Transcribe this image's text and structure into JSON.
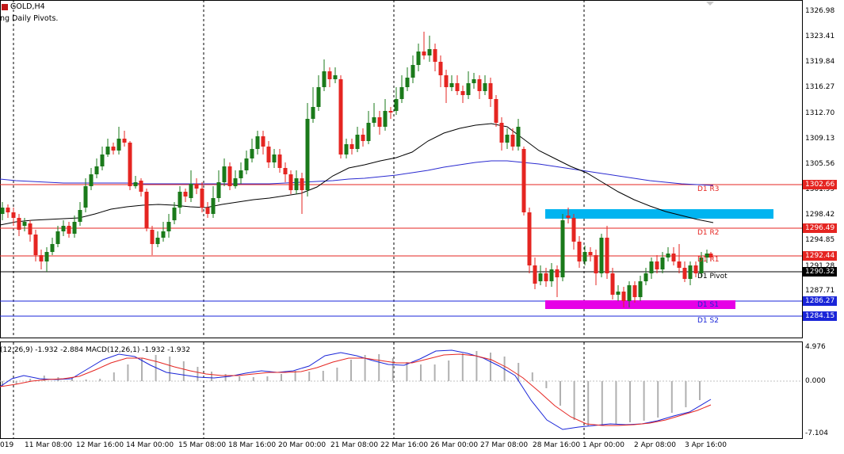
{
  "header": {
    "symbol": "GOLD,H4",
    "indicator_name": "ng Daily Pivots."
  },
  "price_scale": [
    "1326.98",
    "1323.41",
    "1319.84",
    "1316.27",
    "1312.70",
    "1309.13",
    "1305.56",
    "1301.99",
    "1298.42",
    "1294.85",
    "1291.28",
    "1287.71"
  ],
  "price_tags": [
    {
      "id": "r3",
      "value": "1302.66",
      "color": "#e52521"
    },
    {
      "id": "r2",
      "value": "1296.49",
      "color": "#e52521"
    },
    {
      "id": "r1",
      "value": "1292.44",
      "color": "#e52521"
    },
    {
      "id": "pivot",
      "value": "1290.32",
      "color": "#000000"
    },
    {
      "id": "s1",
      "value": "1286.27",
      "color": "#1a25d8"
    },
    {
      "id": "s2",
      "value": "1284.15",
      "color": "#1a25d8"
    }
  ],
  "pivot_labels": {
    "r3": "D1 R3",
    "r2": "D1 R2",
    "r1": "D1 R1",
    "pivot": "D1 Pivot",
    "s1": "D1 S1",
    "s2": "D1 S2"
  },
  "macd": {
    "caption": "(12,26,9) -1.932 -2.884 MACD(12,26,1) -1.932 -1.932",
    "scale": [
      "4.976",
      "0.000",
      "-7.104"
    ]
  },
  "time_axis": [
    "019",
    "11 Mar 08:00",
    "12 Mar 16:00",
    "14 Mar 00:00",
    "15 Mar 08:00",
    "18 Mar 16:00",
    "20 Mar 00:00",
    "21 Mar 08:00",
    "22 Mar 16:00",
    "26 Mar 00:00",
    "27 Mar 08:00",
    "28 Mar 16:00",
    "1 Apr 00:00",
    "2 Apr 08:00",
    "3 Apr 16:00"
  ],
  "colors": {
    "bull": "#1a7a1a",
    "bear": "#e52521",
    "ma_slow": "#2a2ad0",
    "ma_fast": "#000000",
    "zone_top": "#00b4f0",
    "zone_bottom": "#e600e6",
    "macd_line": "#1a25d8",
    "signal_line": "#e52521",
    "histogram": "#b0b0b0"
  }
}
